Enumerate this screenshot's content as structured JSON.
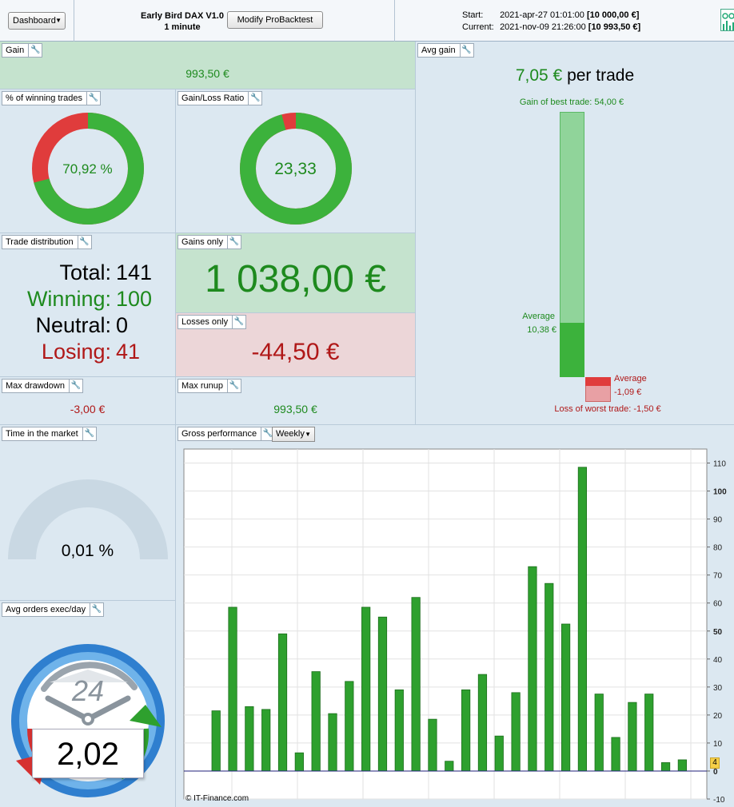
{
  "topbar": {
    "dashboard_label": "Dashboard",
    "strategy_name": "Early Bird DAX V1.0",
    "timeframe": "1 minute",
    "modify_label": "Modify ProBacktest",
    "start_label": "Start:",
    "start_date": "2021-apr-27 01:01:00",
    "start_value": "[10 000,00 €]",
    "current_label": "Current:",
    "current_date": "2021-nov-09 21:26:00",
    "current_value": "[10 993,50 €]"
  },
  "gain": {
    "title": "Gain",
    "value": "993,50 €"
  },
  "winning_pct": {
    "title": "% of winning trades",
    "value": "70,92 %",
    "fraction": 0.7092
  },
  "gain_loss_ratio": {
    "title": "Gain/Loss Ratio",
    "value": "23,33",
    "gain_fraction": 0.9589
  },
  "trade_distribution": {
    "title": "Trade distribution",
    "total_label": "Total:",
    "total": "141",
    "winning_label": "Winning:",
    "winning": "100",
    "neutral_label": "Neutral:",
    "neutral": "0",
    "losing_label": "Losing:",
    "losing": "41"
  },
  "gains_only": {
    "title": "Gains only",
    "value": "1 038,00 €"
  },
  "losses_only": {
    "title": "Losses only",
    "value": "-44,50 €"
  },
  "max_drawdown": {
    "title": "Max drawdown",
    "value": "-3,00 €"
  },
  "max_runup": {
    "title": "Max runup",
    "value": "993,50 €"
  },
  "avg_gain": {
    "title": "Avg gain",
    "value": "7,05 €",
    "suffix": "per trade",
    "best_label": "Gain of best trade: 54,00 €",
    "avg_gain_label": "Average",
    "avg_gain_value": "10,38 €",
    "avg_loss_label": "Average",
    "avg_loss_value": "-1,09 €",
    "worst_label": "Loss of worst trade: -1,50 €",
    "best": 54.0,
    "avg_win": 10.38,
    "avg_loss": -1.09,
    "worst": -1.5
  },
  "time_in_market": {
    "title": "Time in the market",
    "value": "0,01 %"
  },
  "avg_orders": {
    "title": "Avg orders exec/day",
    "clock_label": "24",
    "value": "2,02"
  },
  "gross_performance": {
    "title": "Gross performance",
    "period_label": "Weekly",
    "copyright": "© IT-Finance.com",
    "last_value_badge": "4"
  },
  "chart_data": {
    "type": "bar",
    "title": "Gross performance",
    "xlabel": "",
    "ylabel": "",
    "ylim": [
      -10,
      115
    ],
    "yticks": [
      -10,
      0,
      10,
      20,
      30,
      40,
      50,
      60,
      70,
      80,
      90,
      100,
      110
    ],
    "bold_ticks": [
      0,
      50,
      100
    ],
    "grid": true,
    "values": [
      21.5,
      58.5,
      23,
      22,
      49,
      6.5,
      35.5,
      20.5,
      32,
      58.5,
      55,
      29,
      62,
      18.5,
      3.5,
      29,
      34.5,
      12.5,
      28,
      73,
      67,
      52.5,
      108.5,
      27.5,
      12,
      24.5,
      27.5,
      3,
      4
    ]
  },
  "colors": {
    "win_green": "#3cb23c",
    "loss_red": "#e03c3c",
    "text_green": "#1e8a1e",
    "text_red": "#b01818",
    "bar_green": "#2ea02e"
  }
}
